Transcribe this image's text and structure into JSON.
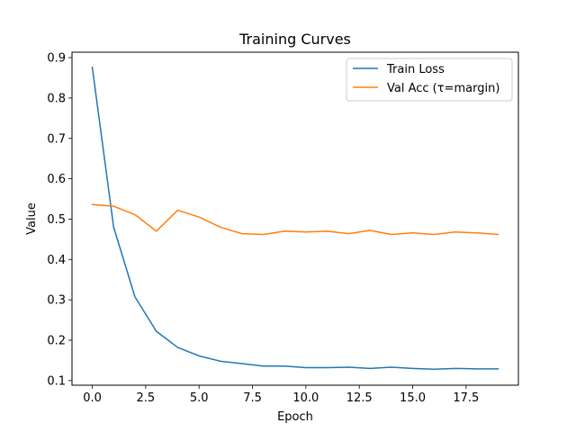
{
  "chart_data": {
    "type": "line",
    "title": "Training Curves",
    "xlabel": "Epoch",
    "ylabel": "Value",
    "xlim": [
      -0.95,
      19.95
    ],
    "ylim": [
      0.0885,
      0.9135
    ],
    "xticks": [
      0.0,
      2.5,
      5.0,
      7.5,
      10.0,
      12.5,
      15.0,
      17.5
    ],
    "xtick_labels": [
      "0.0",
      "2.5",
      "5.0",
      "7.5",
      "10.0",
      "12.5",
      "15.0",
      "17.5"
    ],
    "yticks": [
      0.1,
      0.2,
      0.3,
      0.4,
      0.5,
      0.6,
      0.7,
      0.8,
      0.9
    ],
    "ytick_labels": [
      "0.1",
      "0.2",
      "0.3",
      "0.4",
      "0.5",
      "0.6",
      "0.7",
      "0.8",
      "0.9"
    ],
    "grid": false,
    "legend_position": "top-right",
    "x": [
      0,
      1,
      2,
      3,
      4,
      5,
      6,
      7,
      8,
      9,
      10,
      11,
      12,
      13,
      14,
      15,
      16,
      17,
      18,
      19
    ],
    "series": [
      {
        "name": "Train Loss",
        "color": "#1f77b4",
        "values": [
          0.876,
          0.48,
          0.307,
          0.222,
          0.182,
          0.161,
          0.148,
          0.142,
          0.136,
          0.136,
          0.132,
          0.132,
          0.133,
          0.13,
          0.133,
          0.13,
          0.128,
          0.13,
          0.129,
          0.129
        ]
      },
      {
        "name": "Val Acc (τ=margin)",
        "color": "#ff7f0e",
        "values": [
          0.536,
          0.532,
          0.511,
          0.47,
          0.522,
          0.505,
          0.48,
          0.464,
          0.462,
          0.47,
          0.468,
          0.47,
          0.464,
          0.472,
          0.462,
          0.466,
          0.462,
          0.468,
          0.466,
          0.462
        ]
      }
    ]
  }
}
